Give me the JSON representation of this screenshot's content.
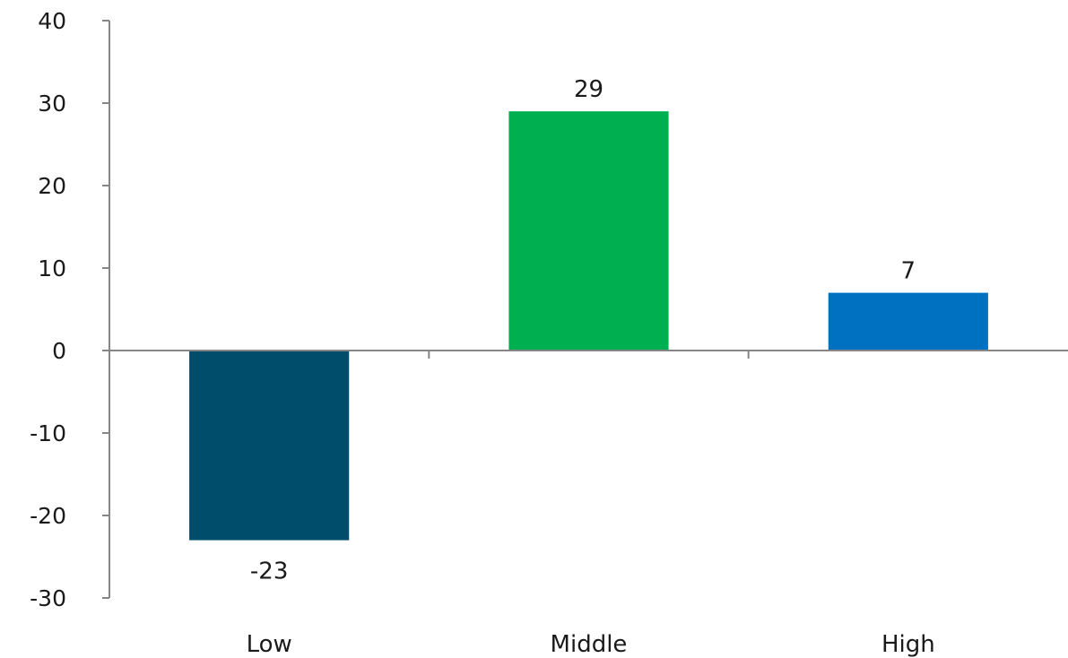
{
  "chart_data": {
    "type": "bar",
    "categories": [
      "Low",
      "Middle",
      "High"
    ],
    "values": [
      -23,
      29,
      7
    ],
    "data_labels": [
      "-23",
      "29",
      "7"
    ],
    "bar_colors": [
      "#004c6b",
      "#00b050",
      "#0070c0"
    ],
    "ylim": [
      -30,
      40
    ],
    "yticks": [
      40,
      30,
      20,
      10,
      0,
      -10,
      -20,
      -30
    ],
    "ytick_labels": [
      "40",
      "30",
      "20",
      "10",
      "0",
      "-10",
      "-20",
      "-30"
    ],
    "grid": false,
    "legend": "none",
    "axis_color": "#868686"
  }
}
